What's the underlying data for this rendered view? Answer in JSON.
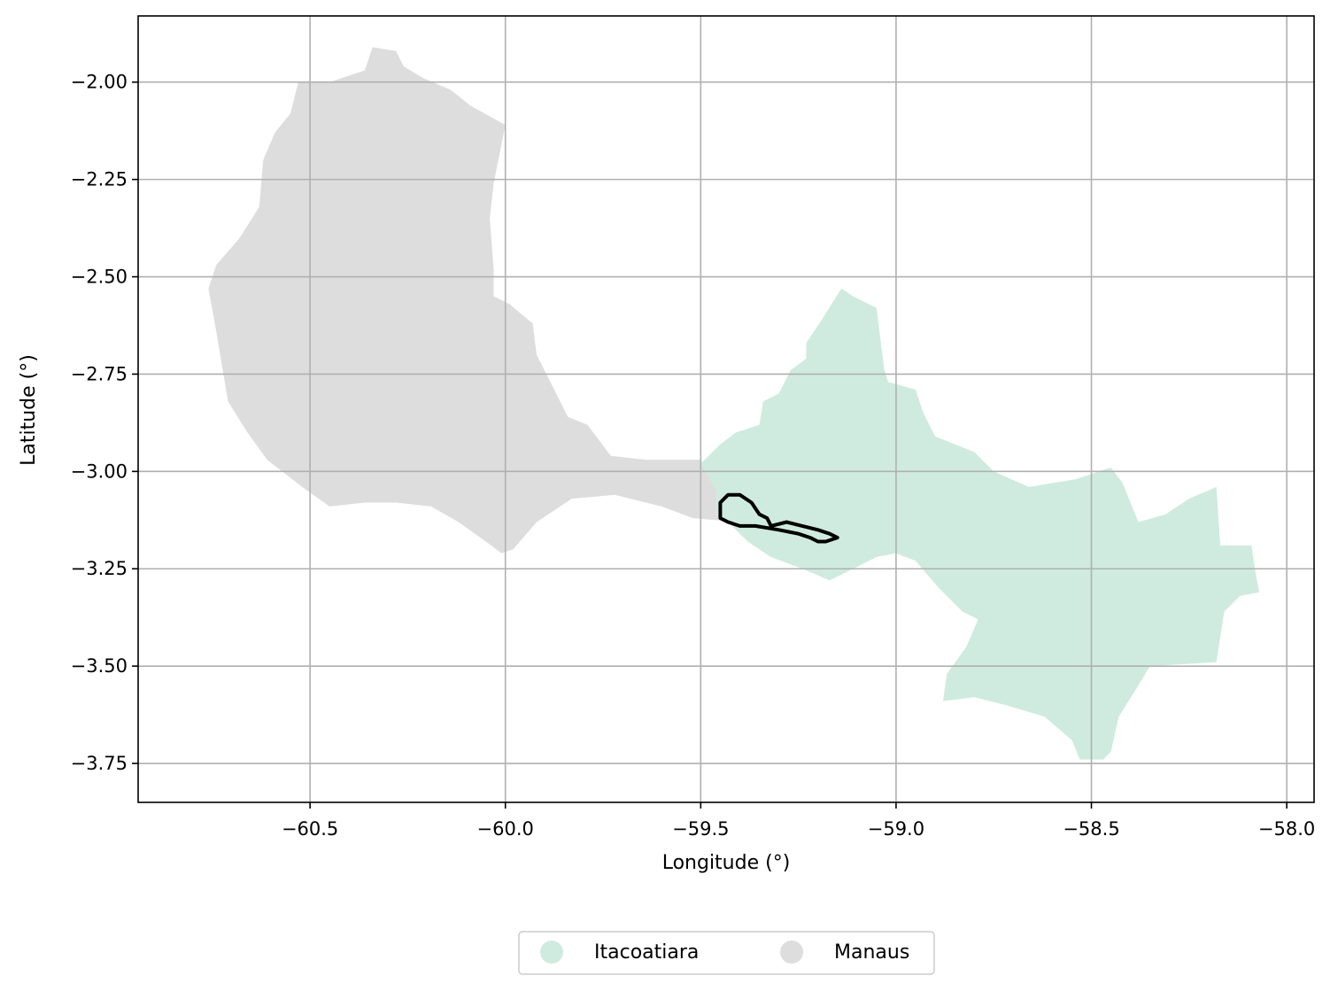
{
  "chart_data": {
    "type": "map",
    "xlabel": "Longitude (°)",
    "ylabel": "Latitude (°)",
    "xlim": [
      -60.94,
      -57.93
    ],
    "ylim": [
      -3.85,
      -1.83
    ],
    "xticks": [
      -60.5,
      -60.0,
      -59.5,
      -59.0,
      -58.5,
      -58.0
    ],
    "xtick_labels": [
      "−60.5",
      "−60.0",
      "−59.5",
      "−59.0",
      "−58.5",
      "−58.0"
    ],
    "yticks": [
      -2.0,
      -2.25,
      -2.5,
      -2.75,
      -3.0,
      -3.25,
      -3.5,
      -3.75
    ],
    "ytick_labels": [
      "−2.00",
      "−2.25",
      "−2.50",
      "−2.75",
      "−3.00",
      "−3.25",
      "−3.50",
      "−3.75"
    ],
    "grid": true,
    "legend_position": "bottom-center",
    "legend": [
      {
        "label": "Itacoatiara",
        "color": "#cfebdf"
      },
      {
        "label": "Manaus",
        "color": "#dddddd"
      }
    ],
    "regions": [
      {
        "name": "Manaus",
        "color": "#dddddd",
        "polygon": [
          [
            -60.34,
            -1.91
          ],
          [
            -60.28,
            -1.92
          ],
          [
            -60.26,
            -1.96
          ],
          [
            -60.21,
            -1.99
          ],
          [
            -60.14,
            -2.02
          ],
          [
            -60.09,
            -2.06
          ],
          [
            -60.0,
            -2.11
          ],
          [
            -60.03,
            -2.26
          ],
          [
            -60.04,
            -2.35
          ],
          [
            -60.03,
            -2.48
          ],
          [
            -60.03,
            -2.55
          ],
          [
            -59.99,
            -2.57
          ],
          [
            -59.93,
            -2.62
          ],
          [
            -59.92,
            -2.7
          ],
          [
            -59.88,
            -2.78
          ],
          [
            -59.84,
            -2.86
          ],
          [
            -59.79,
            -2.88
          ],
          [
            -59.73,
            -2.96
          ],
          [
            -59.64,
            -2.97
          ],
          [
            -59.56,
            -2.97
          ],
          [
            -59.5,
            -2.97
          ],
          [
            -59.46,
            -3.05
          ],
          [
            -59.4,
            -3.13
          ],
          [
            -59.52,
            -3.12
          ],
          [
            -59.6,
            -3.09
          ],
          [
            -59.72,
            -3.06
          ],
          [
            -59.83,
            -3.07
          ],
          [
            -59.92,
            -3.13
          ],
          [
            -59.98,
            -3.2
          ],
          [
            -60.01,
            -3.21
          ],
          [
            -60.05,
            -3.18
          ],
          [
            -60.12,
            -3.13
          ],
          [
            -60.19,
            -3.09
          ],
          [
            -60.28,
            -3.08
          ],
          [
            -60.36,
            -3.08
          ],
          [
            -60.45,
            -3.09
          ],
          [
            -60.52,
            -3.04
          ],
          [
            -60.61,
            -2.97
          ],
          [
            -60.66,
            -2.9
          ],
          [
            -60.71,
            -2.82
          ],
          [
            -60.74,
            -2.64
          ],
          [
            -60.76,
            -2.53
          ],
          [
            -60.74,
            -2.47
          ],
          [
            -60.68,
            -2.4
          ],
          [
            -60.63,
            -2.32
          ],
          [
            -60.62,
            -2.2
          ],
          [
            -60.59,
            -2.13
          ],
          [
            -60.55,
            -2.08
          ],
          [
            -60.53,
            -2.0
          ],
          [
            -60.45,
            -2.0
          ],
          [
            -60.36,
            -1.97
          ]
        ]
      },
      {
        "name": "Itacoatiara",
        "color": "#cfebdf",
        "polygon": [
          [
            -59.5,
            -2.98
          ],
          [
            -59.45,
            -2.93
          ],
          [
            -59.41,
            -2.9
          ],
          [
            -59.35,
            -2.88
          ],
          [
            -59.34,
            -2.82
          ],
          [
            -59.3,
            -2.8
          ],
          [
            -59.27,
            -2.74
          ],
          [
            -59.23,
            -2.71
          ],
          [
            -59.23,
            -2.67
          ],
          [
            -59.19,
            -2.61
          ],
          [
            -59.14,
            -2.53
          ],
          [
            -59.11,
            -2.55
          ],
          [
            -59.05,
            -2.58
          ],
          [
            -59.04,
            -2.66
          ],
          [
            -59.03,
            -2.74
          ],
          [
            -59.02,
            -2.77
          ],
          [
            -58.95,
            -2.79
          ],
          [
            -58.93,
            -2.85
          ],
          [
            -58.9,
            -2.91
          ],
          [
            -58.8,
            -2.95
          ],
          [
            -58.75,
            -3.0
          ],
          [
            -58.66,
            -3.04
          ],
          [
            -58.54,
            -3.02
          ],
          [
            -58.45,
            -2.99
          ],
          [
            -58.42,
            -3.03
          ],
          [
            -58.38,
            -3.13
          ],
          [
            -58.31,
            -3.11
          ],
          [
            -58.25,
            -3.07
          ],
          [
            -58.18,
            -3.04
          ],
          [
            -58.17,
            -3.19
          ],
          [
            -58.09,
            -3.19
          ],
          [
            -58.08,
            -3.26
          ],
          [
            -58.07,
            -3.31
          ],
          [
            -58.12,
            -3.32
          ],
          [
            -58.16,
            -3.36
          ],
          [
            -58.18,
            -3.49
          ],
          [
            -58.35,
            -3.5
          ],
          [
            -58.38,
            -3.55
          ],
          [
            -58.43,
            -3.63
          ],
          [
            -58.45,
            -3.72
          ],
          [
            -58.47,
            -3.74
          ],
          [
            -58.53,
            -3.74
          ],
          [
            -58.55,
            -3.69
          ],
          [
            -58.62,
            -3.63
          ],
          [
            -58.72,
            -3.6
          ],
          [
            -58.8,
            -3.58
          ],
          [
            -58.88,
            -3.59
          ],
          [
            -58.87,
            -3.52
          ],
          [
            -58.82,
            -3.45
          ],
          [
            -58.79,
            -3.38
          ],
          [
            -58.83,
            -3.36
          ],
          [
            -58.89,
            -3.3
          ],
          [
            -58.95,
            -3.23
          ],
          [
            -59.0,
            -3.21
          ],
          [
            -59.05,
            -3.22
          ],
          [
            -59.11,
            -3.25
          ],
          [
            -59.17,
            -3.28
          ],
          [
            -59.24,
            -3.25
          ],
          [
            -59.32,
            -3.22
          ],
          [
            -59.38,
            -3.18
          ],
          [
            -59.42,
            -3.14
          ],
          [
            -59.46,
            -3.11
          ],
          [
            -59.46,
            -3.05
          ]
        ]
      }
    ],
    "outline": {
      "color": "#000000",
      "polygon": [
        [
          -59.45,
          -3.08
        ],
        [
          -59.43,
          -3.06
        ],
        [
          -59.4,
          -3.06
        ],
        [
          -59.37,
          -3.08
        ],
        [
          -59.35,
          -3.11
        ],
        [
          -59.33,
          -3.12
        ],
        [
          -59.32,
          -3.14
        ],
        [
          -59.28,
          -3.13
        ],
        [
          -59.24,
          -3.14
        ],
        [
          -59.2,
          -3.15
        ],
        [
          -59.17,
          -3.16
        ],
        [
          -59.15,
          -3.17
        ],
        [
          -59.18,
          -3.18
        ],
        [
          -59.2,
          -3.18
        ],
        [
          -59.22,
          -3.17
        ],
        [
          -59.25,
          -3.16
        ],
        [
          -59.3,
          -3.15
        ],
        [
          -59.36,
          -3.14
        ],
        [
          -59.4,
          -3.14
        ],
        [
          -59.43,
          -3.13
        ],
        [
          -59.45,
          -3.12
        ]
      ]
    }
  }
}
